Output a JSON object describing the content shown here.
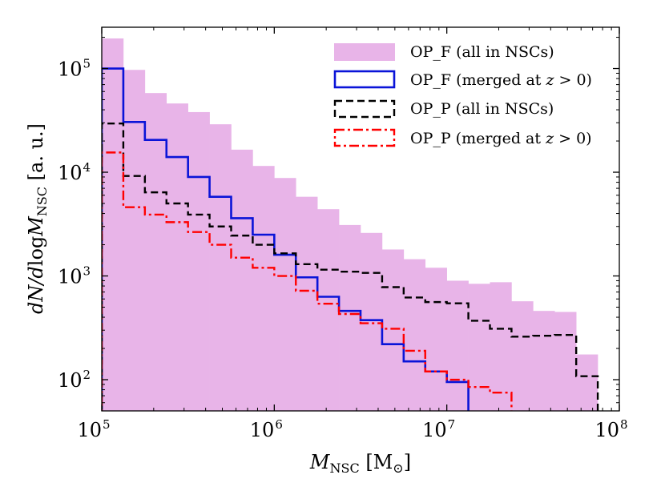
{
  "chart_data": {
    "type": "histogram-step",
    "xscale": "log",
    "yscale": "log",
    "xlim": [
      100000,
      100000000
    ],
    "ylim": [
      50,
      250000
    ],
    "xlabel": {
      "main": "M",
      "sub": "NSC",
      "unit": " [M",
      "unit_sub": "⊙",
      "close": "]"
    },
    "ylabel": {
      "main": "dN/d",
      "log": "log",
      "var": "M",
      "sub": "NSC",
      "tail": " [a. u.]"
    },
    "xticks": [
      {
        "value": 100000,
        "base": "10",
        "exp": "5"
      },
      {
        "value": 1000000,
        "base": "10",
        "exp": "6"
      },
      {
        "value": 10000000,
        "base": "10",
        "exp": "7"
      },
      {
        "value": 100000000,
        "base": "10",
        "exp": "8"
      }
    ],
    "yticks": [
      {
        "value": 100,
        "base": "10",
        "exp": "2"
      },
      {
        "value": 1000,
        "base": "10",
        "exp": "3"
      },
      {
        "value": 10000,
        "base": "10",
        "exp": "4"
      },
      {
        "value": 100000,
        "base": "10",
        "exp": "5"
      }
    ],
    "bin_edges_log10": [
      5.0,
      5.125,
      5.25,
      5.375,
      5.5,
      5.625,
      5.75,
      5.875,
      6.0,
      6.125,
      6.25,
      6.375,
      6.5,
      6.625,
      6.75,
      6.875,
      7.0,
      7.125,
      7.25,
      7.375,
      7.5,
      7.625,
      7.75,
      7.875,
      8.0
    ],
    "series": [
      {
        "name": "OP_F (all in NSCs)",
        "legend": {
          "text": "OP_F (all in NSCs)"
        },
        "style": "filled",
        "color": "#e8b4e8",
        "values": [
          195000,
          97000,
          58000,
          46000,
          38000,
          29000,
          16500,
          11500,
          8800,
          5800,
          4400,
          3100,
          2600,
          1800,
          1450,
          1200,
          900,
          840,
          870,
          570,
          460,
          450,
          175,
          0
        ]
      },
      {
        "name": "OP_F (merged at z>0)",
        "legend": {
          "text": "OP_F (merged at ",
          "var": "z",
          "rest": " > 0)"
        },
        "style": "solid",
        "color": "#0a14d8",
        "values": [
          100000,
          30500,
          20500,
          14000,
          9000,
          5800,
          3600,
          2500,
          1600,
          970,
          630,
          460,
          375,
          220,
          150,
          120,
          95,
          0,
          0,
          0,
          0,
          0,
          0,
          0
        ]
      },
      {
        "name": "OP_P (all in NSCs)",
        "legend": {
          "text": "OP_P (all in NSCs)"
        },
        "style": "dashed",
        "color": "#000000",
        "values": [
          29500,
          9200,
          6400,
          5000,
          3900,
          3000,
          2450,
          2000,
          1650,
          1300,
          1150,
          1100,
          1070,
          780,
          620,
          560,
          545,
          370,
          310,
          260,
          265,
          270,
          108,
          0
        ]
      },
      {
        "name": "OP_P (merged at z>0)",
        "legend": {
          "text": "OP_P (merged at ",
          "var": "z",
          "rest": " > 0)"
        },
        "style": "dashdot",
        "color": "#ff0000",
        "values": [
          15500,
          4600,
          3900,
          3300,
          2650,
          2000,
          1500,
          1200,
          1000,
          720,
          540,
          430,
          350,
          310,
          190,
          120,
          100,
          85,
          75,
          0,
          0,
          0,
          0,
          0
        ]
      }
    ]
  }
}
